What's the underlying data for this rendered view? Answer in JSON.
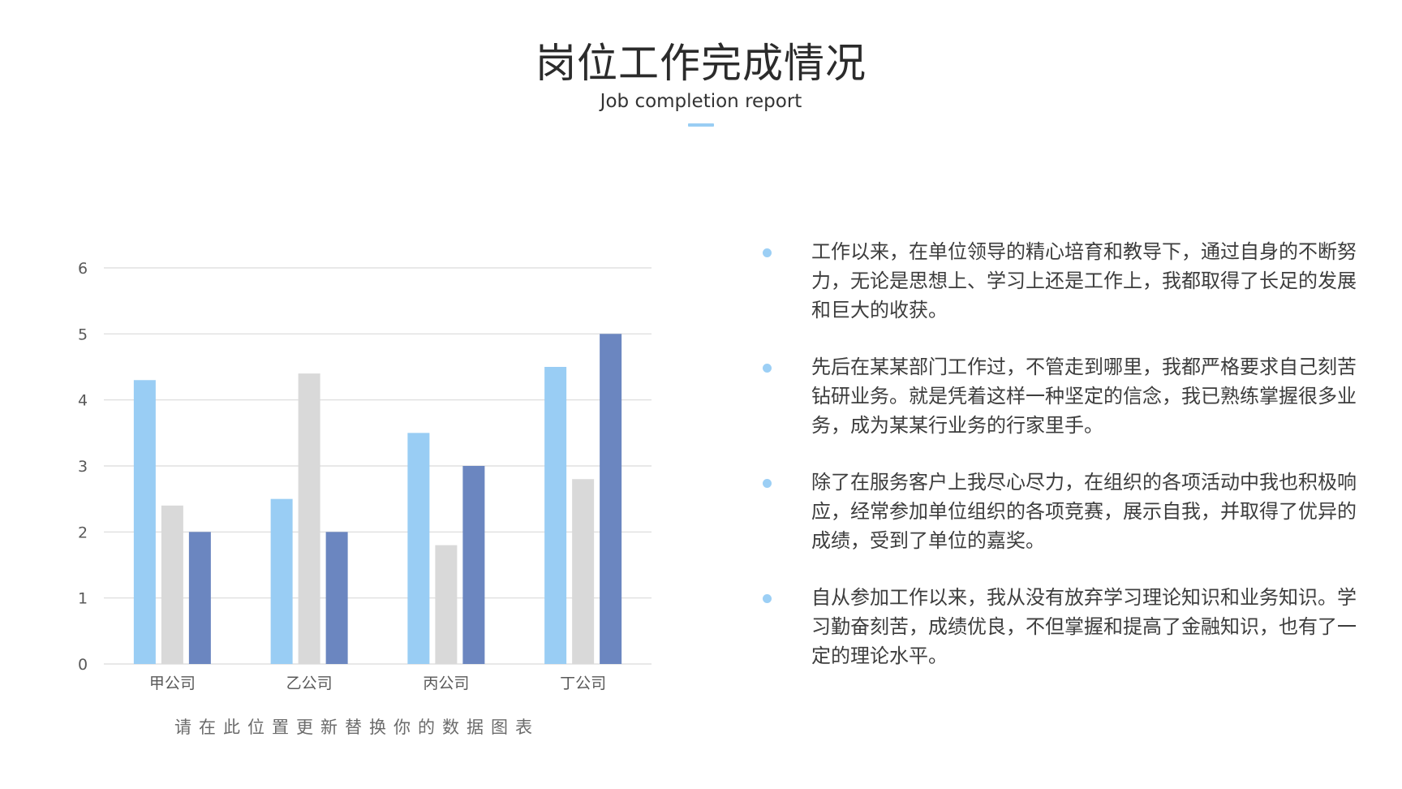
{
  "header": {
    "title": "岗位工作完成情况",
    "subtitle": "Job completion report"
  },
  "chart_caption": "请在此位置更新替换你的数据图表",
  "colors": {
    "series": [
      "#99cdf4",
      "#d9d9d9",
      "#6b86c0"
    ],
    "grid": "#d9d9d9",
    "tick_text": "#595959",
    "accent": "#99cdf4"
  },
  "chart_data": {
    "type": "bar",
    "categories": [
      "甲公司",
      "乙公司",
      "丙公司",
      "丁公司"
    ],
    "series": [
      {
        "values": [
          4.3,
          2.5,
          3.5,
          4.5
        ]
      },
      {
        "values": [
          2.4,
          4.4,
          1.8,
          2.8
        ]
      },
      {
        "values": [
          2.0,
          2.0,
          3.0,
          5.0
        ]
      }
    ],
    "yticks": [
      "0",
      "1",
      "2",
      "3",
      "4",
      "5",
      "6"
    ],
    "ylim": [
      0,
      6
    ],
    "grid": true,
    "legend": "none"
  },
  "bullets": [
    {
      "text": "工作以来，在单位领导的精心培育和教导下，通过自身的不断努力，无论是思想上、学习上还是工作上，我都取得了长足的发展和巨大的收获。"
    },
    {
      "text": "先后在某某部门工作过，不管走到哪里，我都严格要求自己刻苦钻研业务。就是凭着这样一种坚定的信念，我已熟练掌握很多业务，成为某某行业务的行家里手。"
    },
    {
      "text": "除了在服务客户上我尽心尽力，在组织的各项活动中我也积极响应，经常参加单位组织的各项竞赛，展示自我，并取得了优异的成绩，受到了单位的嘉奖。"
    },
    {
      "text": "自从参加工作以来，我从没有放弃学习理论知识和业务知识。学习勤奋刻苦，成绩优良，不但掌握和提高了金融知识，也有了一定的理论水平。"
    }
  ]
}
